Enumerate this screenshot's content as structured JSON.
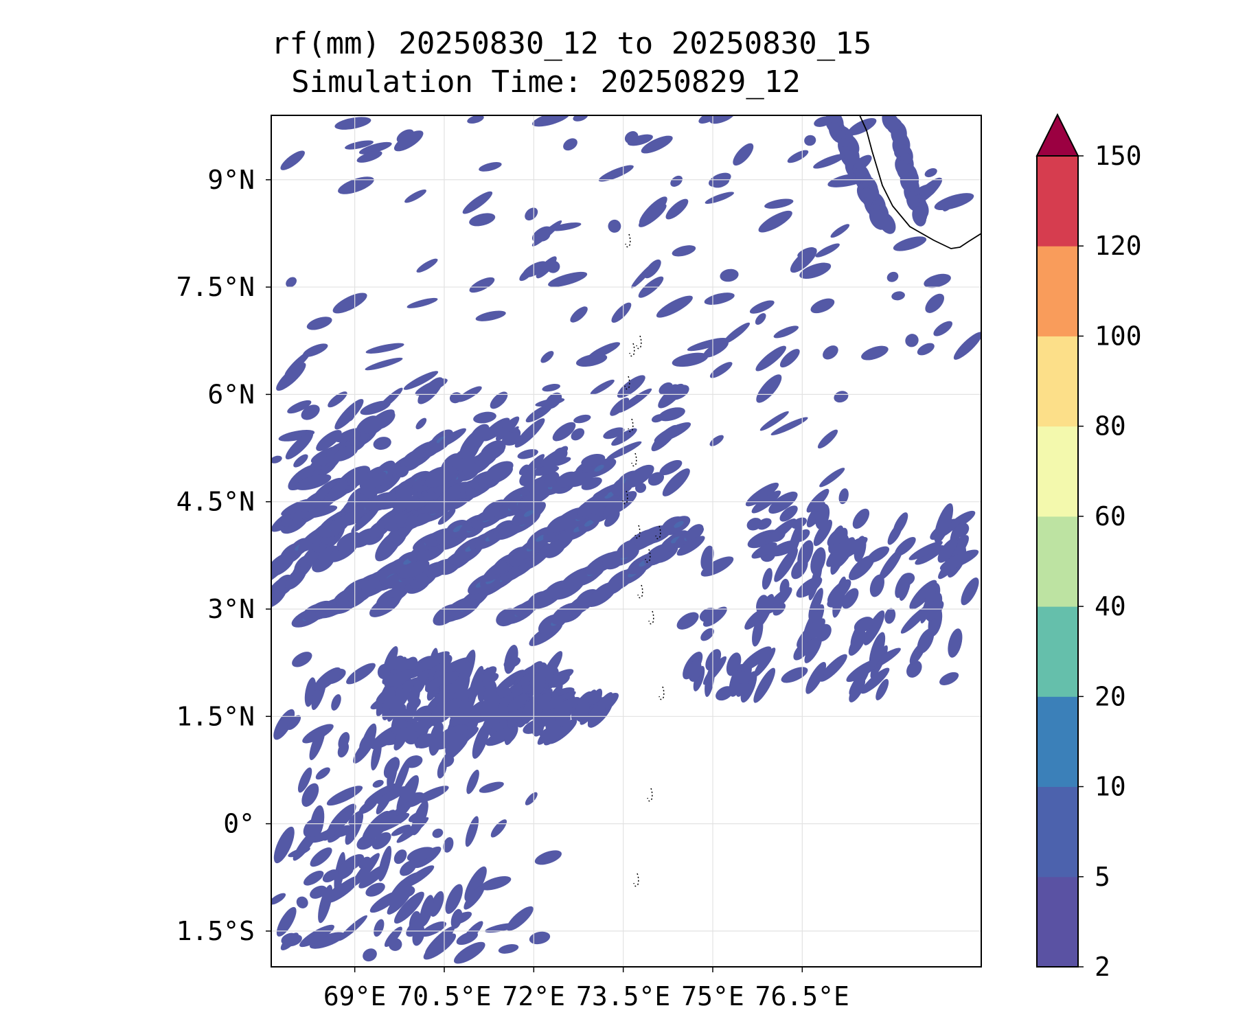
{
  "title": {
    "line1": "rf(mm) 20250830_12 to 20250830_15",
    "line2": "Simulation Time: 20250829_12"
  },
  "map": {
    "lon_range": [
      67.6,
      79.5
    ],
    "lat_range": [
      -2.0,
      9.9
    ],
    "x_ticks": [
      {
        "value": 69.0,
        "label": "69°E"
      },
      {
        "value": 70.5,
        "label": "70.5°E"
      },
      {
        "value": 72.0,
        "label": "72°E"
      },
      {
        "value": 73.5,
        "label": "73.5°E"
      },
      {
        "value": 75.0,
        "label": "75°E"
      },
      {
        "value": 76.5,
        "label": "76.5°E"
      }
    ],
    "y_ticks": [
      {
        "value": 9.0,
        "label": "9°N"
      },
      {
        "value": 7.5,
        "label": "7.5°N"
      },
      {
        "value": 6.0,
        "label": "6°N"
      },
      {
        "value": 4.5,
        "label": "4.5°N"
      },
      {
        "value": 3.0,
        "label": "3°N"
      },
      {
        "value": 1.5,
        "label": "1.5°N"
      },
      {
        "value": 0.0,
        "label": "0°"
      },
      {
        "value": -1.5,
        "label": "1.5°S"
      }
    ],
    "grid": true,
    "coastline_color": "#000000"
  },
  "colorbar": {
    "levels": [
      "2",
      "5",
      "10",
      "20",
      "40",
      "60",
      "80",
      "100",
      "120",
      "150"
    ],
    "colors": [
      "#5a52a3",
      "#4c62ad",
      "#3b80b9",
      "#65bfab",
      "#bde3a2",
      "#f3f9ad",
      "#fcdf89",
      "#f99c5b",
      "#d63d4f"
    ],
    "extend_color": "#9b0041",
    "extend": "max"
  },
  "rain_bands": {
    "color": "#5459a6",
    "inner_color": "#4b68ae",
    "orientation": "SW-NE ridges concentrated 1.5°N–5°N, 68°E–77°E; scattered cells elsewhere"
  }
}
